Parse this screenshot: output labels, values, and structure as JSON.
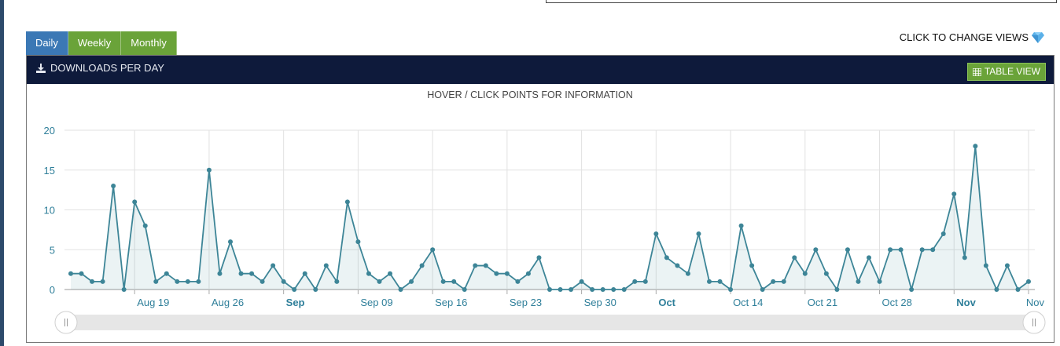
{
  "tabs": [
    {
      "label": "Daily",
      "active": true
    },
    {
      "label": "Weekly",
      "active": false
    },
    {
      "label": "Monthly",
      "active": false
    }
  ],
  "hint_text": "CLICK TO CHANGE VIEWS",
  "panel": {
    "title": "DOWNLOADS PER DAY",
    "table_view_label": "TABLE VIEW",
    "subtitle": "HOVER / CLICK POINTS FOR INFORMATION"
  },
  "colors": {
    "header_bg": "#0e1a3b",
    "tab_active": "#3b78b5",
    "tab_green": "#6aa339",
    "series_line": "#3d8597",
    "axis_text": "#2f7f9a"
  },
  "chart_data": {
    "type": "area",
    "title": "",
    "xlabel": "",
    "ylabel": "",
    "ylim": [
      0,
      20
    ],
    "yticks": [
      0,
      5,
      10,
      15,
      20
    ],
    "x_start": "2020-08-13",
    "x_ticks": [
      {
        "date": "2020-08-19",
        "label": "Aug 19",
        "bold": false
      },
      {
        "date": "2020-08-26",
        "label": "Aug 26",
        "bold": false
      },
      {
        "date": "2020-09-02",
        "label": "Sep",
        "bold": true
      },
      {
        "date": "2020-09-09",
        "label": "Sep 09",
        "bold": false
      },
      {
        "date": "2020-09-16",
        "label": "Sep 16",
        "bold": false
      },
      {
        "date": "2020-09-23",
        "label": "Sep 23",
        "bold": false
      },
      {
        "date": "2020-09-30",
        "label": "Sep 30",
        "bold": false
      },
      {
        "date": "2020-10-07",
        "label": "Oct",
        "bold": true
      },
      {
        "date": "2020-10-14",
        "label": "Oct 14",
        "bold": false
      },
      {
        "date": "2020-10-21",
        "label": "Oct 21",
        "bold": false
      },
      {
        "date": "2020-10-28",
        "label": "Oct 28",
        "bold": false
      },
      {
        "date": "2020-11-04",
        "label": "Nov",
        "bold": true
      },
      {
        "date": "2020-11-11",
        "label": "Nov",
        "bold": false
      }
    ],
    "series": [
      {
        "values": [
          2,
          2,
          1,
          1,
          13,
          0,
          11,
          8,
          1,
          2,
          1,
          1,
          1,
          15,
          2,
          6,
          2,
          2,
          1,
          3,
          1,
          0,
          2,
          0,
          3,
          1,
          11,
          6,
          2,
          1,
          2,
          0,
          1,
          3,
          5,
          1,
          1,
          0,
          3,
          3,
          2,
          2,
          1,
          2,
          4,
          0,
          0,
          0,
          1,
          0,
          0,
          0,
          0,
          1,
          1,
          7,
          4,
          3,
          2,
          7,
          1,
          1,
          0,
          8,
          3,
          0,
          1,
          1,
          4,
          2,
          5,
          2,
          0,
          5,
          1,
          4,
          1,
          5,
          5,
          0,
          5,
          5,
          7,
          12,
          4,
          18,
          3,
          0,
          3,
          0,
          1
        ]
      }
    ]
  }
}
